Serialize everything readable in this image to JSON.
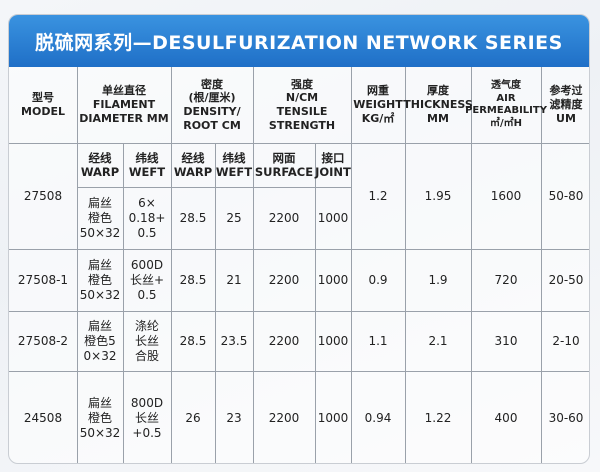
{
  "title": "脱硫网系列—DESULFURIZATION NETWORK SERIES",
  "headers": {
    "model": "型号\nMODEL",
    "filament": "单丝直径\nFILAMENT\nDIAMETER MM",
    "density": "密度\n(根/厘米)\nDENSITY/\nROOT CM",
    "strength": "强度\nN/CM\nTENSILE\nSTRENGTH",
    "weight": "网重\nWEIGHT\nKG/㎡",
    "thickness": "厚度\nTHICKNESS\nMM",
    "air": "透气度\nAIR\nPERMEABILITY\n㎥/㎡H",
    "filter": "参考过\n滤精度\nUM"
  },
  "subheaders": {
    "warp": "经线\nWARP",
    "weft": "纬线\nWEFT",
    "density_warp": "经线\nWARP",
    "density_weft": "纬线\nWEFT",
    "surface": "网面\nSURFACE",
    "joint": "接口\nJOINT"
  },
  "rows": [
    {
      "model": "27508",
      "warp": "扁丝\n橙色\n50×32",
      "weft": "6×\n0.18+\n0.5",
      "density_warp": "28.5",
      "density_weft": "25",
      "surface": "2200",
      "joint": "1000",
      "weight": "1.2",
      "thickness": "1.95",
      "air": "1600",
      "filter": "50-80"
    },
    {
      "model": "27508-1",
      "warp": "扁丝\n橙色\n50×32",
      "weft": "600D\n长丝+\n0.5",
      "density_warp": "28.5",
      "density_weft": "21",
      "surface": "2200",
      "joint": "1000",
      "weight": "0.9",
      "thickness": "1.9",
      "air": "720",
      "filter": "20-50"
    },
    {
      "model": "27508-2",
      "warp": "扁丝\n橙色5\n0×32",
      "weft": "涤纶\n长丝\n合股",
      "density_warp": "28.5",
      "density_weft": "23.5",
      "surface": "2200",
      "joint": "1000",
      "weight": "1.1",
      "thickness": "2.1",
      "air": "310",
      "filter": "2-10"
    },
    {
      "model": "24508",
      "warp": "扁丝\n橙色\n50×32",
      "weft": "800D\n长丝\n+0.5",
      "density_warp": "26",
      "density_weft": "23",
      "surface": "2200",
      "joint": "1000",
      "weight": "0.94",
      "thickness": "1.22",
      "air": "400",
      "filter": "30-60"
    }
  ]
}
